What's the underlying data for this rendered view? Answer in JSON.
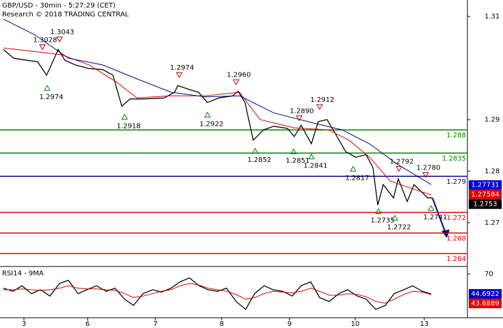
{
  "chart_data": [
    {
      "type": "line",
      "title": "GBP/USD - 30min - 5:27:29 (CET)",
      "subtitle": "Research © 2018 TRADING CENTRAL",
      "xlim": [
        0,
        683
      ],
      "ylim": [
        1.2615,
        1.3132
      ],
      "yticks": [
        1.31,
        1.29,
        1.28,
        1.27
      ],
      "xticks": [
        {
          "value": 35,
          "label": "3"
        },
        {
          "value": 128,
          "label": "6"
        },
        {
          "value": 227,
          "label": "7"
        },
        {
          "value": 324,
          "label": "8"
        },
        {
          "value": 423,
          "label": "9"
        },
        {
          "value": 519,
          "label": "10"
        },
        {
          "value": 620,
          "label": "13"
        }
      ],
      "series": [
        {
          "color": "#000000",
          "x": [
            5,
            20,
            40,
            55,
            68,
            75,
            85,
            95,
            110,
            130,
            150,
            165,
            178,
            190,
            210,
            240,
            255,
            260,
            275,
            290,
            303,
            320,
            340,
            348,
            358,
            370,
            385,
            400,
            420,
            430,
            440,
            455,
            465,
            478,
            490,
            505,
            520,
            535,
            545,
            552,
            560,
            575,
            582,
            595,
            605,
            615,
            625,
            632
          ],
          "values": [
            1.3036,
            1.3019,
            1.3015,
            1.3012,
            1.2986,
            1.3006,
            1.3036,
            1.3015,
            1.3006,
            1.2999,
            1.2997,
            1.2986,
            1.2926,
            1.294,
            1.294,
            1.2942,
            1.2953,
            1.2966,
            1.2959,
            1.2953,
            1.2933,
            1.2942,
            1.2946,
            1.2955,
            1.2933,
            1.286,
            1.288,
            1.2887,
            1.2883,
            1.2867,
            1.2889,
            1.2853,
            1.2896,
            1.29,
            1.2873,
            1.2838,
            1.2827,
            1.2832,
            1.2807,
            1.2734,
            1.2774,
            1.2748,
            1.2785,
            1.2741,
            1.2774,
            1.2761,
            1.2748,
            1.2748
          ]
        },
        {
          "color": "#d00000",
          "x": [
            5,
            50,
            90,
            130,
            170,
            200,
            250,
            300,
            350,
            380,
            430,
            480,
            510,
            540,
            570,
            600,
            630
          ],
          "values": [
            1.3039,
            1.3032,
            1.3026,
            1.3006,
            1.2973,
            1.2942,
            1.2946,
            1.2946,
            1.2953,
            1.29,
            1.2884,
            1.288,
            1.286,
            1.2827,
            1.2781,
            1.2767,
            1.2754
          ]
        },
        {
          "color": "#000080",
          "x": [
            5,
            50,
            100,
            150,
            200,
            250,
            300,
            350,
            400,
            450,
            500,
            540,
            580,
            630
          ],
          "values": [
            1.3095,
            1.3065,
            1.3019,
            1.3006,
            1.2979,
            1.2953,
            1.2944,
            1.2946,
            1.2913,
            1.2896,
            1.288,
            1.2853,
            1.2814,
            1.2774
          ]
        }
      ],
      "levels": [
        {
          "value": 1.288,
          "color": "#008000"
        },
        {
          "value": 1.2835,
          "color": "#008000"
        },
        {
          "value": 1.279,
          "color": "#000080"
        },
        {
          "value": 1.272,
          "color": "#e00000"
        },
        {
          "value": 1.268,
          "color": "#e00000"
        },
        {
          "value": 1.264,
          "color": "#e00000"
        }
      ],
      "annotations": [
        {
          "kind": "high",
          "x": 62,
          "value": 1.3028
        },
        {
          "kind": "high",
          "x": 87,
          "value": 1.3043
        },
        {
          "kind": "high",
          "x": 262,
          "value": 1.2974
        },
        {
          "kind": "high",
          "x": 345,
          "value": 1.296,
          "label": "1.2960"
        },
        {
          "kind": "high",
          "x": 437,
          "value": 1.289,
          "label": "1.2890"
        },
        {
          "kind": "high",
          "x": 467,
          "value": 1.2912
        },
        {
          "kind": "high",
          "x": 583,
          "value": 1.2792
        },
        {
          "kind": "high",
          "x": 622,
          "value": 1.278,
          "label": "1.2780"
        },
        {
          "kind": "low",
          "x": 69,
          "value": 1.2974
        },
        {
          "kind": "low",
          "x": 182,
          "value": 1.2918
        },
        {
          "kind": "low",
          "x": 303,
          "value": 1.2922
        },
        {
          "kind": "low",
          "x": 373,
          "value": 1.2852
        },
        {
          "kind": "low",
          "x": 429,
          "value": 1.2851
        },
        {
          "kind": "low",
          "x": 455,
          "value": 1.2841
        },
        {
          "kind": "low",
          "x": 516,
          "value": 1.2817
        },
        {
          "kind": "low",
          "x": 553,
          "value": 1.2735
        },
        {
          "kind": "low",
          "x": 577,
          "value": 1.2722
        },
        {
          "kind": "low",
          "x": 630,
          "value": 1.2741
        }
      ],
      "price_labels": [
        {
          "value": 1.27731,
          "color": "#0000cc"
        },
        {
          "value": 1.27584,
          "color": "#e00000"
        },
        {
          "value": 1.2753,
          "color": "#000000"
        }
      ]
    },
    {
      "type": "line",
      "title": "RSI14 - 9MA",
      "xlim": [
        0,
        683
      ],
      "ylim": [
        14.3,
        77.8
      ],
      "yticks": [
        70
      ],
      "series": [
        {
          "color": "#000000",
          "x": [
            5,
            19,
            32,
            46,
            59,
            73,
            87,
            100,
            114,
            127,
            141,
            155,
            168,
            182,
            195,
            209,
            223,
            236,
            250,
            263,
            277,
            291,
            304,
            318,
            331,
            345,
            359,
            372,
            386,
            399,
            413,
            427,
            440,
            454,
            467,
            481,
            495,
            508,
            522,
            535,
            549,
            563,
            576,
            590,
            603,
            617,
            630
          ],
          "values": [
            52,
            48,
            55,
            45,
            50,
            42,
            58,
            62,
            45,
            50,
            55,
            48,
            52,
            38,
            30,
            45,
            50,
            47,
            52,
            60,
            65,
            55,
            50,
            48,
            52,
            35,
            25,
            45,
            55,
            50,
            48,
            42,
            55,
            60,
            40,
            35,
            45,
            50,
            42,
            38,
            25,
            30,
            45,
            50,
            55,
            48,
            44.7
          ]
        },
        {
          "color": "#d00000",
          "x": [
            5,
            19,
            32,
            46,
            59,
            73,
            87,
            100,
            114,
            127,
            141,
            155,
            168,
            182,
            195,
            209,
            223,
            236,
            250,
            263,
            277,
            291,
            304,
            318,
            331,
            345,
            359,
            372,
            386,
            399,
            413,
            427,
            440,
            454,
            467,
            481,
            495,
            508,
            522,
            535,
            549,
            563,
            576,
            590,
            603,
            617,
            630
          ],
          "values": [
            50,
            50,
            51,
            50,
            49,
            50,
            52,
            55,
            52,
            51,
            51,
            50,
            49,
            45,
            40,
            42,
            45,
            48,
            50,
            55,
            58,
            56,
            52,
            50,
            48,
            44,
            38,
            40,
            45,
            48,
            47,
            46,
            48,
            52,
            48,
            43,
            43,
            45,
            44,
            41,
            35,
            33,
            38,
            44,
            48,
            47,
            43.7
          ]
        }
      ],
      "price_labels": [
        {
          "value": 44.6922,
          "color": "#0000cc"
        },
        {
          "value": 43.6889,
          "color": "#e00000"
        }
      ]
    }
  ]
}
